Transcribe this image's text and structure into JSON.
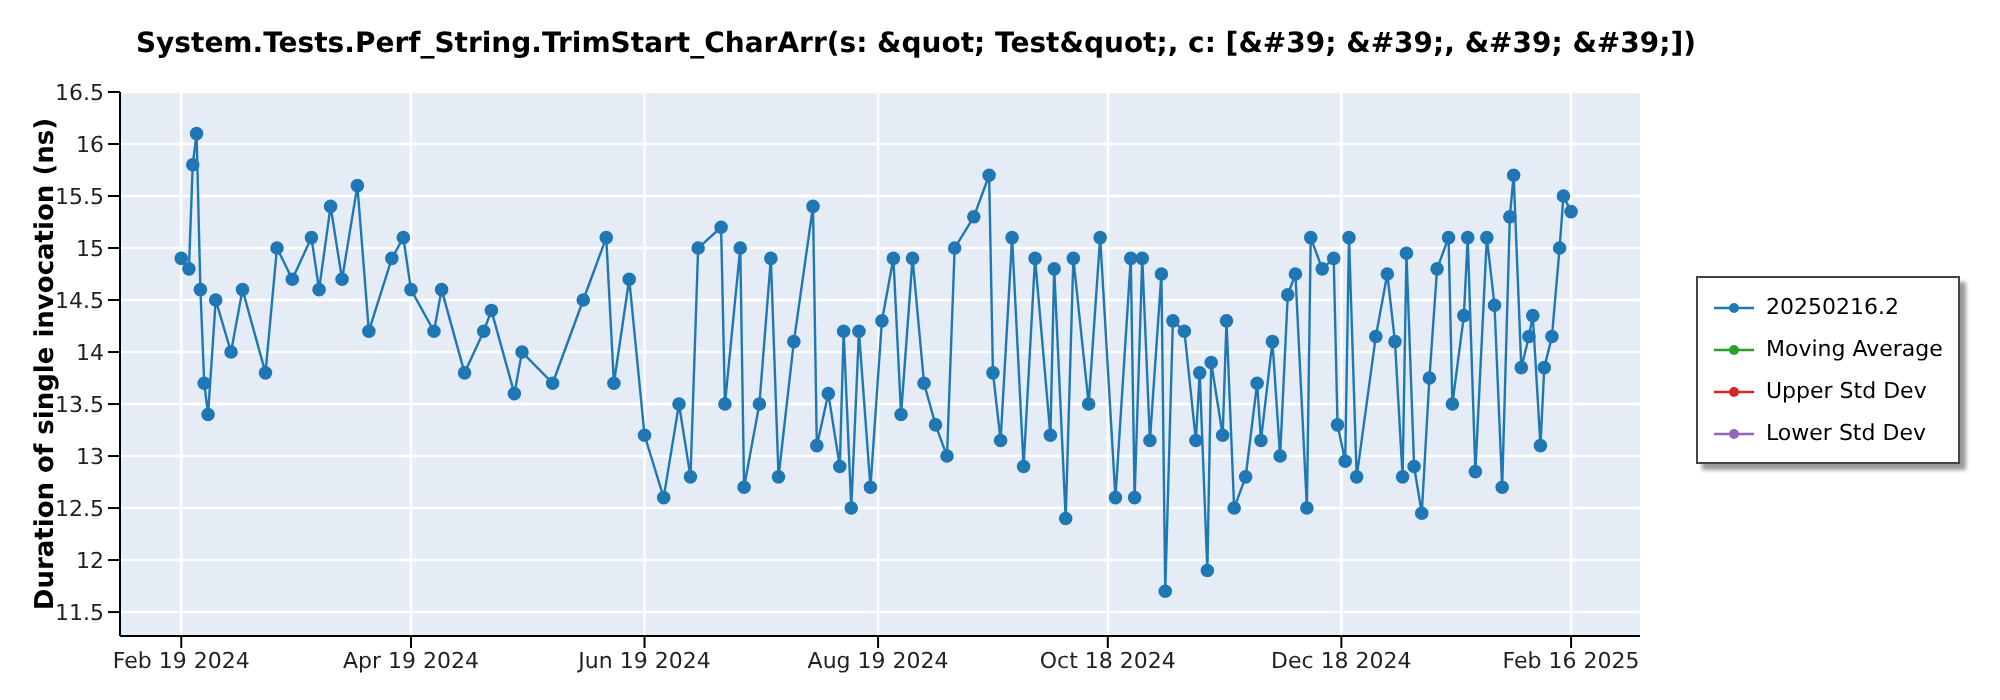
{
  "chart_data": {
    "type": "line",
    "title": "System.Tests.Perf_String.TrimStart_CharArr(s: &quot; Test&quot;, c: [&#39; &#39;, &#39; &#39;])",
    "ylabel": "Duration of single invocation (ns)",
    "x": [
      "2024-02-19",
      "2024-02-21",
      "2024-02-22",
      "2024-02-23",
      "2024-02-24",
      "2024-02-25",
      "2024-02-26",
      "2024-02-28",
      "2024-03-03",
      "2024-03-06",
      "2024-03-12",
      "2024-03-15",
      "2024-03-19",
      "2024-03-24",
      "2024-03-26",
      "2024-03-29",
      "2024-04-01",
      "2024-04-05",
      "2024-04-08",
      "2024-04-14",
      "2024-04-17",
      "2024-04-19",
      "2024-04-25",
      "2024-04-27",
      "2024-05-03",
      "2024-05-08",
      "2024-05-10",
      "2024-05-16",
      "2024-05-18",
      "2024-05-26",
      "2024-06-03",
      "2024-06-09",
      "2024-06-11",
      "2024-06-15",
      "2024-06-19",
      "2024-06-24",
      "2024-06-28",
      "2024-07-01",
      "2024-07-03",
      "2024-07-09",
      "2024-07-10",
      "2024-07-14",
      "2024-07-15",
      "2024-07-19",
      "2024-07-22",
      "2024-07-24",
      "2024-07-28",
      "2024-08-02",
      "2024-08-03",
      "2024-08-06",
      "2024-08-09",
      "2024-08-10",
      "2024-08-12",
      "2024-08-14",
      "2024-08-17",
      "2024-08-20",
      "2024-08-23",
      "2024-08-25",
      "2024-08-28",
      "2024-08-31",
      "2024-09-03",
      "2024-09-06",
      "2024-09-08",
      "2024-09-13",
      "2024-09-17",
      "2024-09-18",
      "2024-09-20",
      "2024-09-23",
      "2024-09-26",
      "2024-09-29",
      "2024-10-03",
      "2024-10-04",
      "2024-10-07",
      "2024-10-09",
      "2024-10-13",
      "2024-10-16",
      "2024-10-20",
      "2024-10-24",
      "2024-10-25",
      "2024-10-27",
      "2024-10-29",
      "2024-11-01",
      "2024-11-02",
      "2024-11-04",
      "2024-11-07",
      "2024-11-10",
      "2024-11-11",
      "2024-11-13",
      "2024-11-14",
      "2024-11-17",
      "2024-11-18",
      "2024-11-20",
      "2024-11-23",
      "2024-11-26",
      "2024-11-27",
      "2024-11-30",
      "2024-12-02",
      "2024-12-04",
      "2024-12-06",
      "2024-12-09",
      "2024-12-10",
      "2024-12-13",
      "2024-12-16",
      "2024-12-17",
      "2024-12-19",
      "2024-12-20",
      "2024-12-22",
      "2024-12-27",
      "2024-12-30",
      "2025-01-01",
      "2025-01-03",
      "2025-01-04",
      "2025-01-06",
      "2025-01-08",
      "2025-01-10",
      "2025-01-12",
      "2025-01-15",
      "2025-01-16",
      "2025-01-19",
      "2025-01-20",
      "2025-01-22",
      "2025-01-25",
      "2025-01-27",
      "2025-01-29",
      "2025-01-31",
      "2025-02-01",
      "2025-02-03",
      "2025-02-05",
      "2025-02-06",
      "2025-02-08",
      "2025-02-09",
      "2025-02-11",
      "2025-02-13",
      "2025-02-14",
      "2025-02-16"
    ],
    "series": [
      {
        "name": "20250216.2",
        "color": "#1f77b4",
        "values": [
          14.9,
          14.8,
          15.8,
          16.1,
          14.6,
          13.7,
          13.4,
          14.5,
          14.0,
          14.6,
          13.8,
          15.0,
          14.7,
          15.1,
          14.6,
          15.4,
          14.7,
          15.6,
          14.2,
          14.9,
          15.1,
          14.6,
          14.2,
          14.6,
          13.8,
          14.2,
          14.4,
          13.6,
          14.0,
          13.7,
          14.5,
          15.1,
          13.7,
          14.7,
          13.2,
          12.6,
          13.5,
          12.8,
          15.0,
          15.2,
          13.5,
          15.0,
          12.7,
          13.5,
          14.9,
          12.8,
          14.1,
          15.4,
          13.1,
          13.6,
          12.9,
          14.2,
          12.5,
          14.2,
          12.7,
          14.3,
          14.9,
          13.4,
          14.9,
          13.7,
          13.3,
          13.0,
          15.0,
          15.3,
          15.7,
          13.8,
          13.15,
          15.1,
          12.9,
          14.9,
          13.2,
          14.8,
          12.4,
          14.9,
          13.5,
          15.1,
          12.6,
          14.9,
          12.6,
          14.9,
          13.15,
          14.75,
          11.7,
          14.3,
          14.2,
          13.15,
          13.8,
          11.9,
          13.9,
          13.2,
          14.3,
          12.5,
          12.8,
          13.7,
          13.15,
          14.1,
          13.0,
          14.55,
          14.75,
          12.5,
          15.1,
          14.8,
          14.9,
          13.3,
          12.95,
          15.1,
          12.8,
          14.15,
          14.75,
          14.1,
          12.8,
          14.95,
          12.9,
          12.45,
          13.75,
          14.8,
          15.1,
          13.5,
          14.35,
          15.1,
          12.85,
          15.1,
          14.45,
          12.7,
          15.3,
          15.7,
          13.85,
          14.15,
          14.35,
          13.1,
          13.85,
          14.15,
          15.0,
          15.5,
          15.35
        ]
      },
      {
        "name": "Moving Average",
        "color": "#2ca02c",
        "values": [
          null,
          null,
          null,
          null,
          null,
          null,
          null,
          null,
          null,
          null,
          null,
          null,
          null,
          null,
          null,
          null,
          null,
          null,
          null,
          null,
          null,
          null,
          null,
          null,
          null,
          null,
          null,
          null,
          null,
          null,
          null,
          null,
          null,
          null,
          null,
          null,
          null,
          null,
          null,
          null,
          null,
          null,
          null,
          null,
          null,
          null,
          null,
          null,
          null,
          null,
          null,
          null,
          null,
          null,
          null,
          null,
          null,
          null,
          null,
          null,
          null,
          null,
          null,
          null,
          null,
          null,
          null,
          null,
          null,
          null,
          null,
          null,
          null,
          null,
          null,
          null,
          null,
          null,
          null,
          null,
          null,
          null,
          null,
          null,
          null,
          null,
          null,
          null,
          null,
          null,
          null,
          null,
          null,
          null,
          null,
          null,
          null,
          null,
          null,
          null,
          null,
          null,
          null,
          null,
          null,
          null,
          null,
          null,
          null,
          null,
          null,
          null,
          null,
          null,
          null,
          null,
          null,
          null,
          null,
          null,
          null,
          null,
          null,
          null,
          null,
          null,
          null,
          null,
          null,
          null,
          null,
          null,
          null,
          null,
          null
        ]
      },
      {
        "name": "Upper Std Dev",
        "color": "#d62728",
        "values": [
          null,
          null,
          null,
          null,
          null,
          null,
          null,
          null,
          null,
          null,
          null,
          null,
          null,
          null,
          null,
          null,
          null,
          null,
          null,
          null,
          null,
          null,
          null,
          null,
          null,
          null,
          null,
          null,
          null,
          null,
          null,
          null,
          null,
          null,
          null,
          null,
          null,
          null,
          null,
          null,
          null,
          null,
          null,
          null,
          null,
          null,
          null,
          null,
          null,
          null,
          null,
          null,
          null,
          null,
          null,
          null,
          null,
          null,
          null,
          null,
          null,
          null,
          null,
          null,
          null,
          null,
          null,
          null,
          null,
          null,
          null,
          null,
          null,
          null,
          null,
          null,
          null,
          null,
          null,
          null,
          null,
          null,
          null,
          null,
          null,
          null,
          null,
          null,
          null,
          null,
          null,
          null,
          null,
          null,
          null,
          null,
          null,
          null,
          null,
          null,
          null,
          null,
          null,
          null,
          null,
          null,
          null,
          null,
          null,
          null,
          null,
          null,
          null,
          null,
          null,
          null,
          null,
          null,
          null,
          null,
          null,
          null,
          null,
          null,
          null,
          null,
          null,
          null,
          null,
          null,
          null,
          null,
          null,
          null,
          null
        ]
      },
      {
        "name": "Lower Std Dev",
        "color": "#9467bd",
        "values": [
          null,
          null,
          null,
          null,
          null,
          null,
          null,
          null,
          null,
          null,
          null,
          null,
          null,
          null,
          null,
          null,
          null,
          null,
          null,
          null,
          null,
          null,
          null,
          null,
          null,
          null,
          null,
          null,
          null,
          null,
          null,
          null,
          null,
          null,
          null,
          null,
          null,
          null,
          null,
          null,
          null,
          null,
          null,
          null,
          null,
          null,
          null,
          null,
          null,
          null,
          null,
          null,
          null,
          null,
          null,
          null,
          null,
          null,
          null,
          null,
          null,
          null,
          null,
          null,
          null,
          null,
          null,
          null,
          null,
          null,
          null,
          null,
          null,
          null,
          null,
          null,
          null,
          null,
          null,
          null,
          null,
          null,
          null,
          null,
          null,
          null,
          null,
          null,
          null,
          null,
          null,
          null,
          null,
          null,
          null,
          null,
          null,
          null,
          null,
          null,
          null,
          null,
          null,
          null,
          null,
          null,
          null,
          null,
          null,
          null,
          null,
          null,
          null,
          null,
          null,
          null,
          null,
          null,
          null,
          null,
          null,
          null,
          null,
          null,
          null,
          null,
          null,
          null,
          null,
          null,
          null,
          null,
          null,
          null,
          null
        ]
      }
    ],
    "xlim": [
      "2024-02-03",
      "2025-03-06"
    ],
    "xticks": [
      {
        "value": "2024-02-19",
        "label": "Feb 19 2024"
      },
      {
        "value": "2024-04-19",
        "label": "Apr 19 2024"
      },
      {
        "value": "2024-06-19",
        "label": "Jun 19 2024"
      },
      {
        "value": "2024-08-19",
        "label": "Aug 19 2024"
      },
      {
        "value": "2024-10-18",
        "label": "Oct 18 2024"
      },
      {
        "value": "2024-12-18",
        "label": "Dec 18 2024"
      },
      {
        "value": "2025-02-16",
        "label": "Feb 16 2025"
      }
    ],
    "ylim": [
      11.27,
      16.5
    ],
    "yticks": [
      11.5,
      12,
      12.5,
      13,
      13.5,
      14,
      14.5,
      15,
      15.5,
      16,
      16.5
    ],
    "grid": true,
    "legend": "right",
    "marker": "circle",
    "line_style": "solid"
  }
}
